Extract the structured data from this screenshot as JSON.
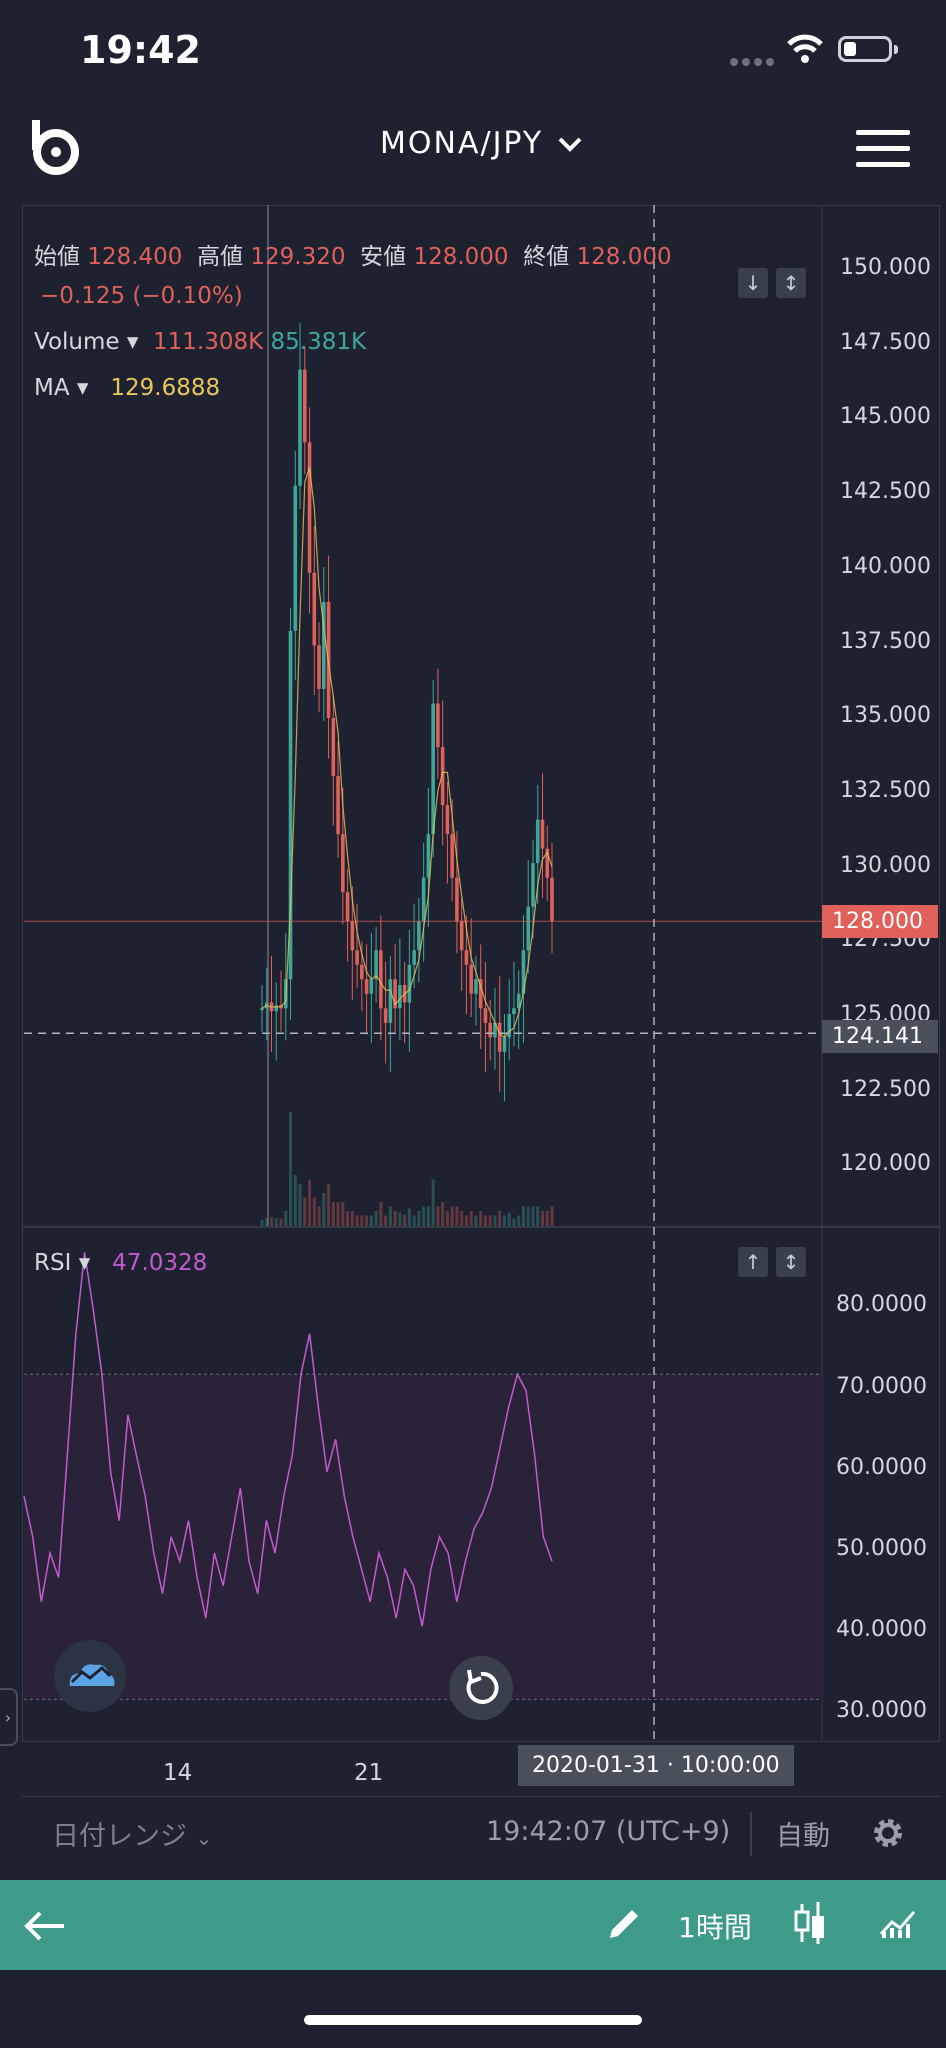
{
  "status_bar": {
    "time": "19:42"
  },
  "header": {
    "pair": "MONA/JPY"
  },
  "legend": {
    "open_label": "始値",
    "open_value": "128.400",
    "high_label": "高値",
    "high_value": "129.320",
    "low_label": "安値",
    "low_value": "128.000",
    "close_label": "終値",
    "close_value": "128.000",
    "change": "−0.125 (−0.10%)",
    "volume_label": "Volume",
    "volume_up": "111.308K",
    "volume_down": "85.381K",
    "ma_label": "MA",
    "ma_value": "129.6888",
    "rsi_label": "RSI",
    "rsi_value": "47.0328"
  },
  "price_axis": [
    "150.000",
    "147.500",
    "145.000",
    "142.500",
    "140.000",
    "137.500",
    "135.000",
    "132.500",
    "130.000",
    "127.500",
    "125.000",
    "122.500",
    "120.000"
  ],
  "rsi_axis": [
    "80.0000",
    "70.0000",
    "60.0000",
    "50.0000",
    "40.0000",
    "30.0000"
  ],
  "last_price_tag": "128.000",
  "crosshair_price_tag": "124.141",
  "crosshair_time_tag": "2020-01-31 · 10:00:00",
  "date_axis": [
    "14",
    "21"
  ],
  "bottom": {
    "date_range": "日付レンジ",
    "clock": "19:42:07 (UTC+9)",
    "auto": "自動"
  },
  "toolbar": {
    "interval": "1時間"
  },
  "colors": {
    "up": "#3ea898",
    "down": "#e0605a",
    "ma": "#e9c65a",
    "rsi": "#c35ad1",
    "toolbar": "#3e9b8a",
    "background": "#1e2230"
  },
  "icons": [
    "logo-icon",
    "chevron-down-icon",
    "menu-icon",
    "arrow-down-icon",
    "expand-icon",
    "arrow-up-icon",
    "cloud-chart-icon",
    "reset-icon",
    "gear-icon",
    "back-arrow-icon",
    "pencil-icon",
    "candlestick-icon",
    "indicator-icon"
  ],
  "chart_data": {
    "type": "candlestick",
    "price_range": [
      117.5,
      152.5
    ],
    "rsi_range": [
      25,
      88
    ],
    "rsi_band": [
      30,
      70
    ],
    "price_line": 128.0,
    "crosshair_price": 124.141,
    "closes": [
      125.0,
      125.2,
      124.9,
      125.1,
      125.0,
      126.0,
      138.0,
      143.0,
      147.0,
      144.5,
      140.0,
      137.5,
      136.0,
      139.0,
      135.0,
      133.0,
      131.0,
      129.0,
      128.0,
      127.0,
      126.5,
      126.0,
      125.5,
      126.0,
      127.0,
      125.0,
      124.5,
      126.0,
      125.0,
      125.8,
      125.2,
      126.5,
      127.0,
      128.0,
      129.5,
      131.0,
      135.5,
      134.0,
      132.0,
      131.0,
      129.5,
      128.0,
      127.0,
      126.5,
      125.5,
      126.0,
      125.0,
      124.5,
      124.0,
      124.5,
      123.5,
      124.0,
      124.8,
      125.0,
      125.5,
      127.0,
      128.5,
      130.0,
      131.5,
      130.5,
      129.5,
      128.0
    ],
    "rsi_values": [
      55,
      50,
      42,
      48,
      45,
      60,
      75,
      85,
      78,
      70,
      58,
      52,
      65,
      60,
      55,
      48,
      43,
      50,
      47,
      52,
      45,
      40,
      48,
      44,
      50,
      56,
      47,
      43,
      52,
      48,
      55,
      60,
      70,
      75,
      66,
      58,
      62,
      55,
      50,
      46,
      42,
      48,
      45,
      40,
      46,
      44,
      39,
      46,
      50,
      48,
      42,
      47,
      51,
      53,
      56,
      61,
      66,
      70,
      68,
      60,
      50,
      47
    ]
  }
}
